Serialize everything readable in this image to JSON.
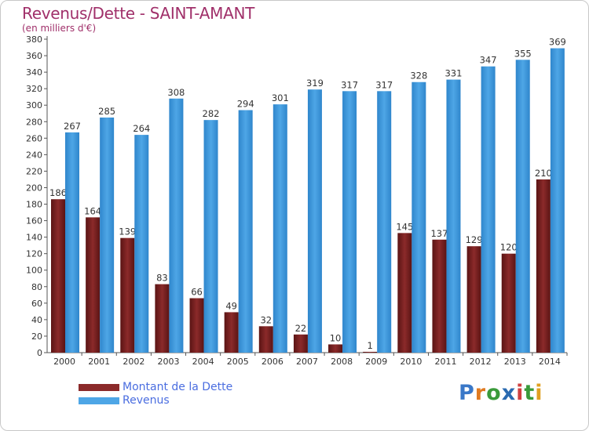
{
  "title": "Revenus/Dette - SAINT-AMANT",
  "subtitle": "(en milliers d'€)",
  "logo": {
    "text": "Proxiti",
    "letter_colors": [
      "#3a78c8",
      "#e07a20",
      "#3a9a3a",
      "#2a6ab0",
      "#d04040",
      "#3a9a3a",
      "#e0a020"
    ]
  },
  "colors": {
    "dette": "#8b2a2a",
    "revenus": "#4ea6e6",
    "axis": "#555555",
    "grid": "#dddddd"
  },
  "chart_data": {
    "type": "bar",
    "categories": [
      "2000",
      "2001",
      "2002",
      "2003",
      "2004",
      "2005",
      "2006",
      "2007",
      "2008",
      "2009",
      "2010",
      "2011",
      "2012",
      "2013",
      "2014"
    ],
    "series": [
      {
        "name": "Montant de la Dette",
        "values": [
          186,
          164,
          139,
          83,
          66,
          49,
          32,
          22,
          10,
          1,
          145,
          137,
          129,
          120,
          210
        ]
      },
      {
        "name": "Revenus",
        "values": [
          267,
          285,
          264,
          308,
          282,
          294,
          301,
          319,
          317,
          317,
          328,
          331,
          347,
          355,
          369
        ]
      }
    ],
    "ylim": [
      0,
      380
    ],
    "ytick_step": 20,
    "grid": false,
    "legend_position": "bottom-left"
  }
}
